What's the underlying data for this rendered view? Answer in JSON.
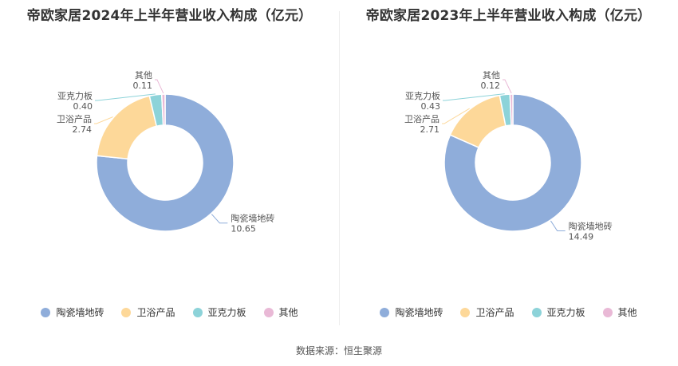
{
  "source_text": "数据来源：恒生聚源",
  "chart_data": [
    {
      "type": "pie",
      "title": "帝欧家居2024年上半年营业收入构成（亿元）",
      "legend_position": "bottom",
      "slices": [
        {
          "name": "陶瓷墙地砖",
          "value": 10.65,
          "display": "10.65",
          "color": "#8fadda"
        },
        {
          "name": "卫浴产品",
          "value": 2.74,
          "display": "2.74",
          "color": "#fdd899"
        },
        {
          "name": "亚克力板",
          "value": 0.4,
          "display": "0.40",
          "color": "#8dd3d9"
        },
        {
          "name": "其他",
          "value": 0.11,
          "display": "0.11",
          "color": "#e9b9d6"
        }
      ]
    },
    {
      "type": "pie",
      "title": "帝欧家居2023年上半年营业收入构成（亿元）",
      "legend_position": "bottom",
      "slices": [
        {
          "name": "陶瓷墙地砖",
          "value": 14.49,
          "display": "14.49",
          "color": "#8fadda"
        },
        {
          "name": "卫浴产品",
          "value": 2.71,
          "display": "2.71",
          "color": "#fdd899"
        },
        {
          "name": "亚克力板",
          "value": 0.43,
          "display": "0.43",
          "color": "#8dd3d9"
        },
        {
          "name": "其他",
          "value": 0.12,
          "display": "0.12",
          "color": "#e9b9d6"
        }
      ]
    }
  ]
}
